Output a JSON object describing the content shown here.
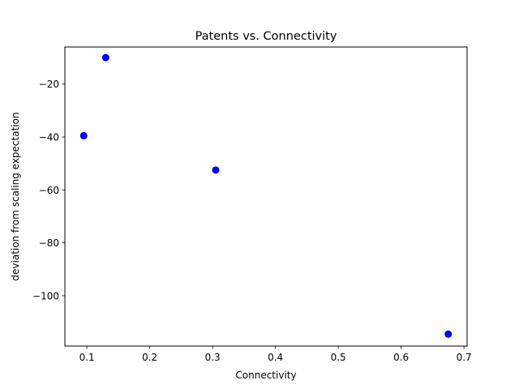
{
  "chart_data": {
    "type": "scatter",
    "title": "Patents vs. Connectivity",
    "xlabel": "Connectivity",
    "ylabel": "deviation from scaling expectation",
    "xlim": [
      0.065,
      0.705
    ],
    "ylim": [
      -119,
      -6
    ],
    "xticks": [
      0.1,
      0.2,
      0.3,
      0.4,
      0.5,
      0.6,
      0.7
    ],
    "xtick_labels": [
      "0.1",
      "0.2",
      "0.3",
      "0.4",
      "0.5",
      "0.6",
      "0.7"
    ],
    "yticks": [
      -20,
      -40,
      -60,
      -80,
      -100
    ],
    "ytick_labels": [
      "−20",
      "−40",
      "−60",
      "−80",
      "−100"
    ],
    "grid": false,
    "legend": "none",
    "marker_color": "#0000ff",
    "points": [
      {
        "x": 0.095,
        "y": -39.5
      },
      {
        "x": 0.13,
        "y": -10.0
      },
      {
        "x": 0.305,
        "y": -52.5
      },
      {
        "x": 0.675,
        "y": -114.5
      }
    ]
  }
}
